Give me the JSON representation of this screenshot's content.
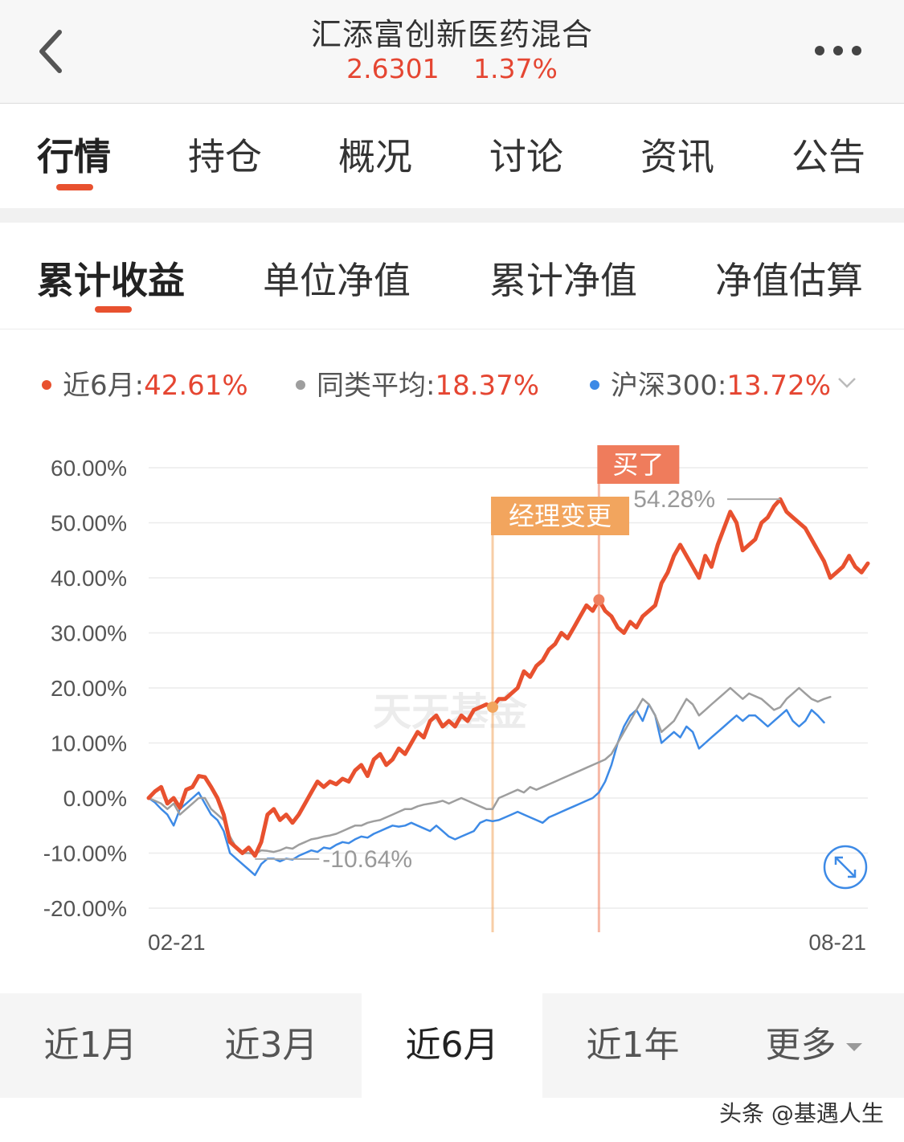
{
  "header": {
    "title": "汇添富创新医药混合",
    "nav": "2.6301",
    "change": "1.37%"
  },
  "tabs": [
    "行情",
    "持仓",
    "概况",
    "讨论",
    "资讯",
    "公告"
  ],
  "subtabs": [
    "累计收益",
    "单位净值",
    "累计净值",
    "净值估算"
  ],
  "legend": [
    {
      "label": "近6月:",
      "value": "42.61%",
      "color": "#e8512f"
    },
    {
      "label": "同类平均:",
      "value": "18.37%",
      "color": "#9e9e9e"
    },
    {
      "label": "沪深300:",
      "value": "13.72%",
      "color": "#3d8ae6"
    }
  ],
  "periods": [
    "近1月",
    "近3月",
    "近6月",
    "近1年",
    "更多"
  ],
  "active_period": "近6月",
  "watermark": "天天基金",
  "footer_watermark": "头条 @基遇人生",
  "chart_data": {
    "type": "line",
    "ylim": [
      -20,
      60
    ],
    "y_ticks": [
      "60.00%",
      "50.00%",
      "40.00%",
      "30.00%",
      "20.00%",
      "10.00%",
      "0.00%",
      "-10.00%",
      "-20.00%"
    ],
    "x_start_label": "02-21",
    "x_end_label": "08-21",
    "annotations": {
      "max_label": "54.28%",
      "min_label": "-10.64%",
      "manager_change": "经理变更",
      "bought": "买了"
    },
    "series": [
      {
        "name": "近6月",
        "color": "#e8512f",
        "values": [
          0,
          1.2,
          2,
          -1,
          0,
          -1.8,
          1.5,
          2,
          4,
          3.8,
          2,
          0,
          -3,
          -8,
          -9,
          -10,
          -9,
          -10.5,
          -8,
          -3,
          -2,
          -4,
          -3,
          -4.5,
          -3,
          -1,
          1,
          3,
          2,
          3,
          2.5,
          3.5,
          3,
          5,
          6,
          4,
          7,
          8,
          6,
          7,
          9,
          8,
          10,
          12,
          11,
          14,
          15,
          13,
          14,
          13,
          15,
          14,
          16,
          16.5,
          17,
          16.5,
          18,
          18,
          19,
          20,
          23,
          22,
          24,
          25,
          27,
          28,
          30,
          29,
          31,
          33,
          35,
          34,
          36,
          34,
          33,
          31,
          30,
          32,
          31,
          33,
          34,
          35,
          39,
          41,
          44,
          46,
          44,
          42,
          40,
          44,
          42,
          46,
          49,
          52,
          50,
          45,
          46,
          47,
          50,
          51,
          53,
          54.28,
          52,
          51,
          50,
          49,
          47,
          45,
          43,
          40,
          41,
          42,
          44,
          42,
          41,
          42.61
        ],
        "markers": [
          {
            "index": 55,
            "label": "经理变更"
          },
          {
            "index": 72,
            "label": "买了"
          }
        ]
      },
      {
        "name": "同类平均",
        "color": "#9e9e9e",
        "values": [
          0,
          -0.5,
          -1,
          -2,
          -1,
          -3,
          -2,
          -1,
          0,
          0,
          -2,
          -3,
          -4,
          -7,
          -9,
          -10,
          -10,
          -10.2,
          -9.5,
          -9.6,
          -9.8,
          -9.5,
          -9,
          -9.2,
          -8.5,
          -8,
          -7.5,
          -7.3,
          -7,
          -6.8,
          -6.5,
          -6,
          -5.5,
          -5,
          -5,
          -4.5,
          -4.2,
          -4,
          -3.5,
          -3,
          -2.5,
          -2,
          -2,
          -1.5,
          -1.2,
          -1,
          -0.8,
          -0.5,
          -1,
          -0.5,
          0,
          -0.5,
          -1,
          -1.5,
          -2,
          -2,
          0,
          0.5,
          1,
          1.5,
          1,
          2,
          1.5,
          2,
          2.5,
          3,
          3.5,
          4,
          4.5,
          5,
          5.5,
          6,
          6.5,
          7,
          8,
          10,
          12,
          14,
          16,
          18,
          17,
          15,
          12,
          13,
          14,
          16,
          18,
          17,
          15,
          16,
          17,
          18,
          19,
          20,
          19,
          18,
          19,
          18.5,
          18,
          17,
          16,
          16.5,
          18,
          19,
          20,
          19,
          18,
          17.5,
          18,
          18.37
        ]
      },
      {
        "name": "沪深300",
        "color": "#3d8ae6",
        "values": [
          0,
          -0.8,
          -2,
          -3,
          -5,
          -2,
          -1,
          0,
          1,
          -1,
          -3,
          -4,
          -6,
          -10,
          -11,
          -12,
          -13,
          -14,
          -12,
          -11,
          -11,
          -11.5,
          -11,
          -11.2,
          -10.5,
          -10,
          -9.5,
          -9.8,
          -9,
          -9.2,
          -8.5,
          -8,
          -8.2,
          -7.5,
          -7,
          -7.2,
          -6.5,
          -6,
          -5.5,
          -5,
          -5.2,
          -5,
          -4.5,
          -5,
          -5.5,
          -6,
          -5,
          -6,
          -7,
          -7.5,
          -7,
          -6.5,
          -6,
          -4.5,
          -4,
          -4.2,
          -4,
          -3.5,
          -3,
          -2.5,
          -3,
          -3.5,
          -4,
          -4.5,
          -3.5,
          -3,
          -2.5,
          -2,
          -1.5,
          -1,
          -0.5,
          0,
          1,
          3,
          6,
          10,
          13,
          15,
          16,
          14,
          17,
          15,
          10,
          11,
          12,
          11,
          13,
          12,
          9,
          10,
          11,
          12,
          13,
          14,
          15,
          14,
          15,
          15,
          14,
          13,
          14,
          15,
          16,
          14,
          13,
          14,
          16,
          15,
          13.72
        ]
      }
    ]
  }
}
